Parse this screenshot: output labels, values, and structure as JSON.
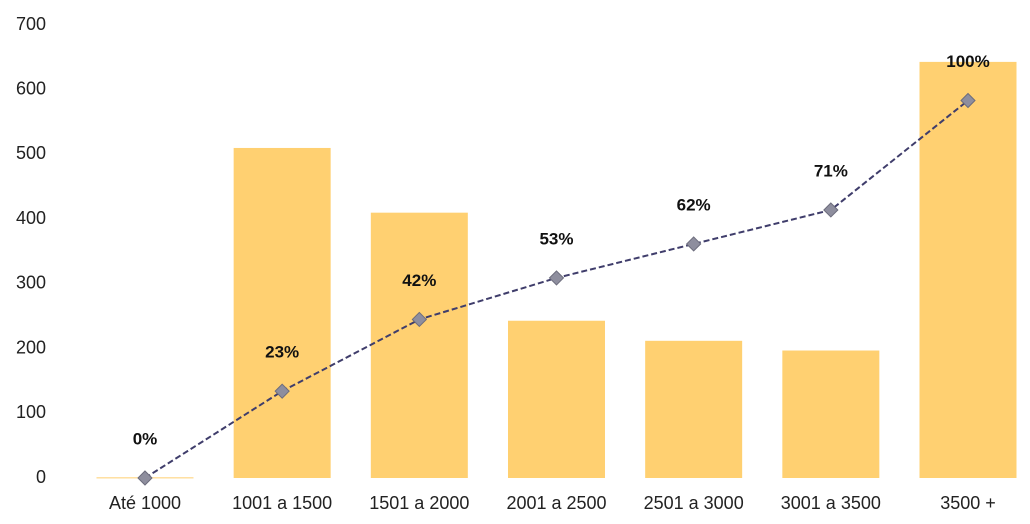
{
  "chart_data": {
    "type": "bar",
    "categories": [
      "Até 1000",
      "1001 a 1500",
      "1501 a 2000",
      "2001 a 2500",
      "2501 a 3000",
      "3001 a 3500",
      "3500 +"
    ],
    "series": [
      {
        "type": "bar",
        "color": "#ffd071",
        "values": [
          1,
          510,
          410,
          243,
          212,
          197,
          643
        ]
      },
      {
        "type": "line",
        "axis": "y2",
        "color": "#3f3d6b",
        "marker_color": "#8e8e9e",
        "values": [
          0,
          23,
          42,
          53,
          62,
          71,
          100
        ],
        "value_labels": [
          "0%",
          "23%",
          "42%",
          "53%",
          "62%",
          "71%",
          "100%"
        ]
      }
    ],
    "ylim": [
      0,
      700
    ],
    "yticks": [
      0,
      100,
      200,
      300,
      400,
      500,
      600,
      700
    ],
    "y2lim": [
      0,
      120
    ],
    "grid": false
  }
}
